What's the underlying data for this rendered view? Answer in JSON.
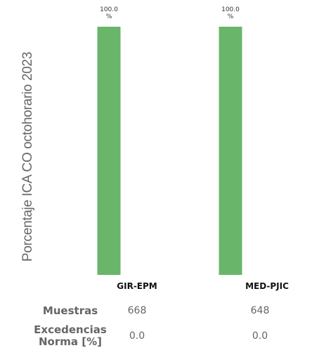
{
  "chart_data": {
    "type": "bar",
    "ylabel": "Porcentaje ICA CO octohorario 2023",
    "categories": [
      "GIR-EPM",
      "MED-PJIC"
    ],
    "values": [
      100.0,
      100.0
    ],
    "data_labels": [
      [
        "100.0",
        "%"
      ],
      [
        "100.0",
        "%"
      ]
    ],
    "ylim": [
      0,
      100
    ],
    "bar_color": "#69b56a",
    "grid": false
  },
  "table": {
    "rows": [
      {
        "label": [
          "Muestras"
        ],
        "values": [
          "668",
          "648"
        ]
      },
      {
        "label": [
          "Excedencias",
          "Norma [%]"
        ],
        "values": [
          "0.0",
          "0.0"
        ]
      }
    ]
  }
}
